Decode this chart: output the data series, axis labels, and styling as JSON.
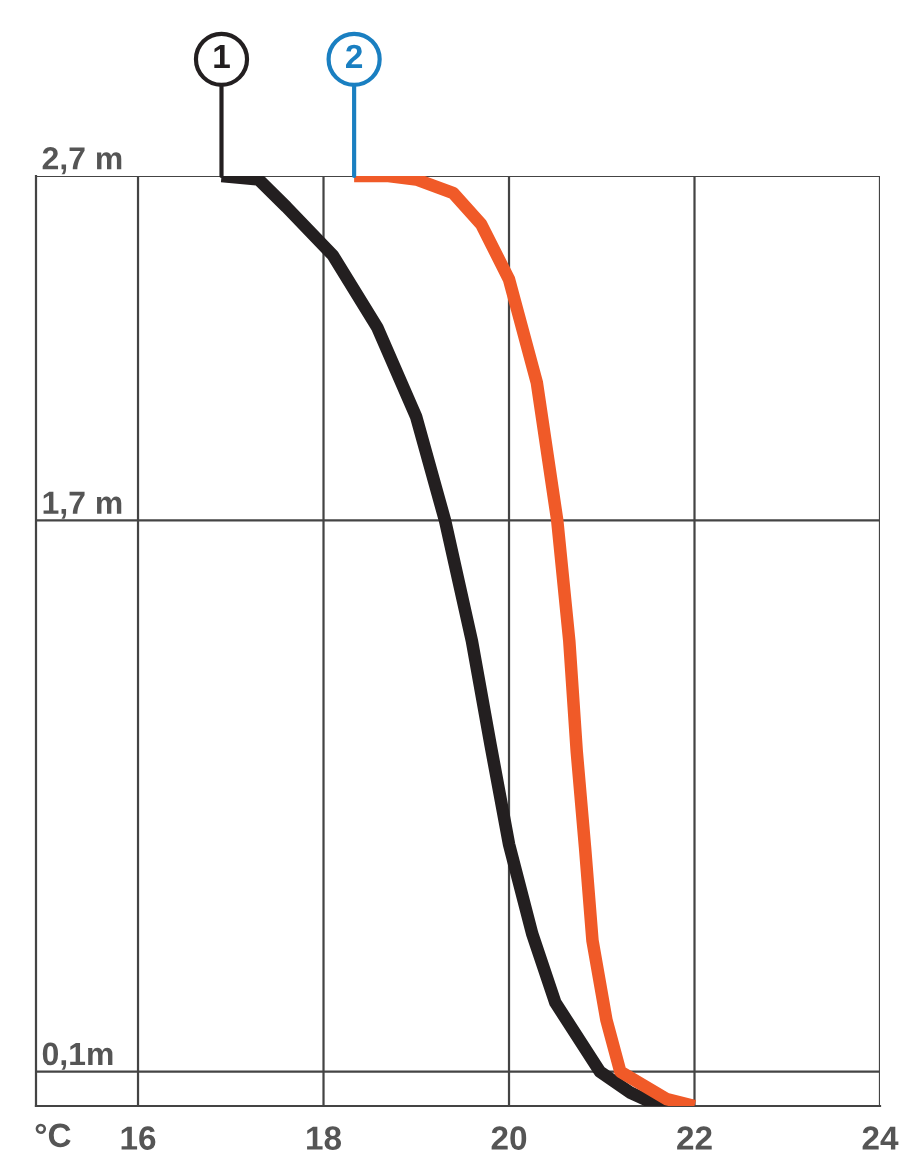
{
  "chart_data": {
    "type": "line",
    "xlabel": "°C",
    "xlim": [
      14.9,
      24
    ],
    "xticks": [
      16,
      18,
      20,
      22,
      24
    ],
    "ylim": [
      0,
      2.7
    ],
    "yticks": [
      {
        "value": 0.1,
        "label": "0,1m"
      },
      {
        "value": 1.7,
        "label": "1,7 m"
      },
      {
        "value": 2.7,
        "label": "2,7 m"
      }
    ],
    "grid": true,
    "line_style": "solid",
    "marker": "none",
    "series": [
      {
        "name": "1",
        "color": "#231f20",
        "x": [
          16.9,
          17.3,
          17.6,
          18.1,
          18.58,
          19.0,
          19.31,
          19.6,
          19.8,
          20.0,
          20.25,
          20.5,
          20.98,
          21.3,
          21.5,
          21.75,
          22.0
        ],
        "values": [
          2.7,
          2.69,
          2.61,
          2.47,
          2.26,
          2.0,
          1.7,
          1.35,
          1.05,
          0.76,
          0.5,
          0.3,
          0.1,
          0.04,
          0.015,
          0.003,
          0
        ]
      },
      {
        "name": "2",
        "color": "#f05a28",
        "x": [
          18.33,
          18.7,
          19.0,
          19.4,
          19.7,
          20.0,
          20.3,
          20.52,
          20.65,
          20.73,
          20.82,
          20.9,
          21.05,
          21.2,
          21.45,
          21.7,
          22.0
        ],
        "values": [
          2.7,
          2.7,
          2.69,
          2.65,
          2.56,
          2.4,
          2.1,
          1.7,
          1.35,
          1.03,
          0.75,
          0.48,
          0.25,
          0.1,
          0.06,
          0.02,
          0
        ]
      }
    ]
  }
}
